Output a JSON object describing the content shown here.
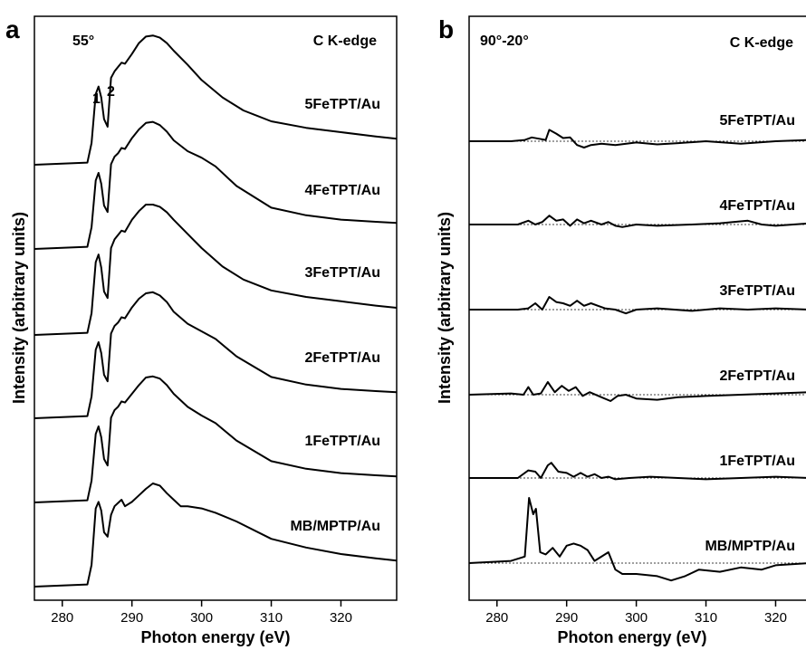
{
  "chart_data": [
    {
      "type": "line",
      "panel": "a",
      "annotation_left": "55°",
      "annotation_right": "C K-edge",
      "peak_labels": [
        "1",
        "2"
      ],
      "xlabel": "Photon energy (eV)",
      "ylabel": "Intensity (arbitrary units)",
      "xlim": [
        276,
        328
      ],
      "x_ticks": [
        280,
        290,
        300,
        310,
        320
      ],
      "y_ticks_labeled": false,
      "grid": false,
      "legend": "none",
      "series": [
        {
          "name": "5FeTPT/Au",
          "offset": 5,
          "x": [
            276,
            283.6,
            284.2,
            284.8,
            285.2,
            285.6,
            286,
            286.5,
            287,
            287.5,
            288,
            288.5,
            289,
            290,
            291,
            292,
            293,
            294,
            295,
            296,
            298,
            300,
            303,
            306,
            310,
            315,
            320,
            325,
            328
          ],
          "values": [
            0.0,
            0.02,
            0.2,
            0.65,
            0.72,
            0.62,
            0.42,
            0.35,
            0.8,
            0.86,
            0.9,
            0.94,
            0.93,
            1.02,
            1.12,
            1.18,
            1.19,
            1.17,
            1.12,
            1.05,
            0.92,
            0.78,
            0.62,
            0.5,
            0.4,
            0.34,
            0.3,
            0.26,
            0.24
          ]
        },
        {
          "name": "4FeTPT/Au",
          "offset": 4,
          "x": [
            276,
            283.6,
            284.2,
            284.8,
            285.2,
            285.6,
            286,
            286.5,
            287,
            287.5,
            288,
            288.5,
            289,
            290,
            291,
            292,
            293,
            294,
            295,
            296,
            298,
            300,
            302,
            305,
            310,
            315,
            320,
            325,
            328
          ],
          "values": [
            0.0,
            0.02,
            0.2,
            0.63,
            0.7,
            0.6,
            0.4,
            0.34,
            0.78,
            0.85,
            0.88,
            0.93,
            0.92,
            1.02,
            1.1,
            1.16,
            1.17,
            1.14,
            1.08,
            1.0,
            0.9,
            0.84,
            0.76,
            0.58,
            0.38,
            0.31,
            0.27,
            0.25,
            0.24
          ]
        },
        {
          "name": "3FeTPT/Au",
          "offset": 3,
          "x": [
            276,
            283.6,
            284.2,
            284.8,
            285.2,
            285.6,
            286,
            286.5,
            287,
            287.5,
            288,
            288.5,
            289,
            290,
            291,
            292,
            293,
            294,
            295,
            296,
            298,
            300,
            303,
            306,
            310,
            315,
            320,
            325,
            328
          ],
          "values": [
            0.0,
            0.02,
            0.2,
            0.67,
            0.74,
            0.62,
            0.4,
            0.34,
            0.8,
            0.88,
            0.92,
            0.96,
            0.95,
            1.06,
            1.14,
            1.2,
            1.2,
            1.18,
            1.13,
            1.06,
            0.93,
            0.8,
            0.63,
            0.51,
            0.41,
            0.35,
            0.31,
            0.27,
            0.25
          ]
        },
        {
          "name": "2FeTPT/Au",
          "offset": 2,
          "x": [
            276,
            283.6,
            284.2,
            284.8,
            285.2,
            285.6,
            286,
            286.5,
            287,
            287.5,
            288,
            288.5,
            289,
            290,
            291,
            292,
            293,
            294,
            295,
            296,
            298,
            300,
            302,
            305,
            310,
            315,
            320,
            325,
            328
          ],
          "values": [
            0.0,
            0.02,
            0.2,
            0.63,
            0.7,
            0.6,
            0.4,
            0.34,
            0.78,
            0.85,
            0.88,
            0.93,
            0.92,
            1.02,
            1.1,
            1.15,
            1.16,
            1.13,
            1.07,
            0.98,
            0.87,
            0.8,
            0.73,
            0.57,
            0.38,
            0.31,
            0.27,
            0.25,
            0.24
          ]
        },
        {
          "name": "1FeTPT/Au",
          "offset": 1,
          "x": [
            276,
            283.6,
            284.2,
            284.8,
            285.2,
            285.6,
            286,
            286.5,
            287,
            287.5,
            288,
            288.5,
            289,
            290,
            291,
            292,
            293,
            294,
            295,
            296,
            298,
            300,
            302,
            305,
            310,
            315,
            320,
            325,
            328
          ],
          "values": [
            0.0,
            0.02,
            0.2,
            0.63,
            0.7,
            0.6,
            0.4,
            0.34,
            0.78,
            0.85,
            0.88,
            0.93,
            0.92,
            1.0,
            1.08,
            1.15,
            1.16,
            1.14,
            1.08,
            1.0,
            0.88,
            0.8,
            0.73,
            0.57,
            0.38,
            0.31,
            0.27,
            0.25,
            0.24
          ]
        },
        {
          "name": "MB/MPTP/Au",
          "offset": 0,
          "x": [
            276,
            283.6,
            284.2,
            284.8,
            285.2,
            285.6,
            286,
            286.5,
            287,
            287.5,
            288,
            288.5,
            289,
            290,
            291,
            292,
            293,
            294,
            295,
            296,
            297,
            298,
            300,
            302,
            305,
            310,
            315,
            320,
            325,
            328
          ],
          "values": [
            0.0,
            0.02,
            0.2,
            0.72,
            0.78,
            0.7,
            0.5,
            0.46,
            0.66,
            0.74,
            0.77,
            0.8,
            0.74,
            0.78,
            0.84,
            0.9,
            0.95,
            0.93,
            0.86,
            0.8,
            0.74,
            0.74,
            0.72,
            0.68,
            0.6,
            0.44,
            0.36,
            0.3,
            0.26,
            0.24
          ]
        }
      ]
    },
    {
      "type": "line",
      "panel": "b",
      "annotation_left": "90°-20°",
      "annotation_right": "C K-edge",
      "xlabel": "Photon energy (eV)",
      "ylabel": "Intensity (arbitrary units)",
      "xlim": [
        276,
        328
      ],
      "x_ticks": [
        280,
        290,
        300,
        310,
        320
      ],
      "y_ticks_labeled": false,
      "baselines": "dotted",
      "grid": false,
      "legend": "none",
      "series": [
        {
          "name": "5FeTPT/Au",
          "offset": 5,
          "x": [
            276,
            282,
            284,
            285,
            286,
            287,
            287.5,
            288.5,
            289.5,
            290.5,
            291.5,
            292.5,
            293.5,
            295,
            297,
            300,
            303,
            306,
            310,
            315,
            320,
            325,
            328
          ],
          "values": [
            0.0,
            0.0,
            0.02,
            0.06,
            0.04,
            0.02,
            0.18,
            0.12,
            0.05,
            0.06,
            -0.06,
            -0.1,
            -0.06,
            -0.04,
            -0.06,
            -0.02,
            -0.05,
            -0.03,
            0.0,
            -0.04,
            0.0,
            0.02,
            0.0
          ]
        },
        {
          "name": "4FeTPT/Au",
          "offset": 4,
          "x": [
            276,
            283,
            284.5,
            285.5,
            286.5,
            287.5,
            288.5,
            289.5,
            290.5,
            291.5,
            292.5,
            293.5,
            295,
            296,
            297,
            298,
            300,
            303,
            308,
            312,
            316,
            318,
            320,
            325,
            328
          ],
          "values": [
            0.0,
            0.0,
            0.06,
            0.0,
            0.04,
            0.14,
            0.06,
            0.08,
            -0.02,
            0.08,
            0.02,
            0.06,
            0.0,
            0.04,
            -0.02,
            -0.04,
            0.0,
            -0.02,
            0.0,
            0.02,
            0.06,
            0.0,
            -0.02,
            0.02,
            0.0
          ]
        },
        {
          "name": "3FeTPT/Au",
          "offset": 3,
          "x": [
            276,
            283,
            284.5,
            285.5,
            286.5,
            287.5,
            288.5,
            289.5,
            290.5,
            291.5,
            292.5,
            293.5,
            294.5,
            295.5,
            297,
            298.5,
            300,
            303,
            308,
            312,
            316,
            320,
            325,
            328
          ],
          "values": [
            0.0,
            0.0,
            0.02,
            0.1,
            0.0,
            0.2,
            0.12,
            0.1,
            0.06,
            0.14,
            0.06,
            0.1,
            0.06,
            0.02,
            0.0,
            -0.06,
            0.0,
            0.02,
            -0.02,
            0.02,
            0.0,
            0.02,
            0.0,
            0.0
          ]
        },
        {
          "name": "2FeTPT/Au",
          "offset": 2,
          "x": [
            276,
            282,
            283.8,
            284.5,
            285.2,
            286.3,
            287.3,
            288.3,
            289.3,
            290.3,
            291.3,
            292.3,
            293.3,
            295,
            296.3,
            297.3,
            298.5,
            300,
            303,
            306,
            310,
            315,
            320,
            325,
            328
          ],
          "values": [
            0.0,
            0.02,
            0.0,
            0.12,
            0.0,
            0.02,
            0.2,
            0.04,
            0.14,
            0.06,
            0.12,
            -0.02,
            0.04,
            -0.04,
            -0.1,
            -0.02,
            0.0,
            -0.06,
            -0.08,
            -0.04,
            -0.02,
            0.0,
            0.02,
            0.04,
            0.02
          ]
        },
        {
          "name": "1FeTPT/Au",
          "offset": 1,
          "x": [
            276,
            283,
            284.5,
            285.5,
            286.3,
            287.3,
            287.8,
            288.8,
            290,
            291,
            292,
            293,
            294,
            295,
            296,
            297,
            299,
            302,
            306,
            310,
            315,
            320,
            325,
            328
          ],
          "values": [
            0.0,
            0.0,
            0.12,
            0.1,
            0.0,
            0.2,
            0.24,
            0.1,
            0.08,
            0.02,
            0.08,
            0.02,
            0.06,
            0.0,
            0.02,
            -0.02,
            0.0,
            0.02,
            0.0,
            -0.02,
            0.0,
            0.02,
            0.0,
            0.02
          ]
        },
        {
          "name": "MB/MPTP/Au",
          "offset": 0,
          "x": [
            276,
            282,
            284,
            284.6,
            285.2,
            285.6,
            286.2,
            287,
            288,
            289,
            290,
            291,
            292,
            293,
            294,
            296,
            297,
            298,
            300,
            303,
            305,
            307,
            309,
            312,
            315,
            318,
            320,
            325,
            328
          ],
          "values": [
            0.0,
            0.02,
            0.06,
            0.6,
            0.45,
            0.5,
            0.1,
            0.08,
            0.14,
            0.06,
            0.16,
            0.18,
            0.16,
            0.12,
            0.02,
            0.1,
            -0.06,
            -0.1,
            -0.1,
            -0.12,
            -0.16,
            -0.12,
            -0.06,
            -0.08,
            -0.04,
            -0.06,
            -0.02,
            0.0,
            0.0
          ]
        }
      ]
    }
  ]
}
